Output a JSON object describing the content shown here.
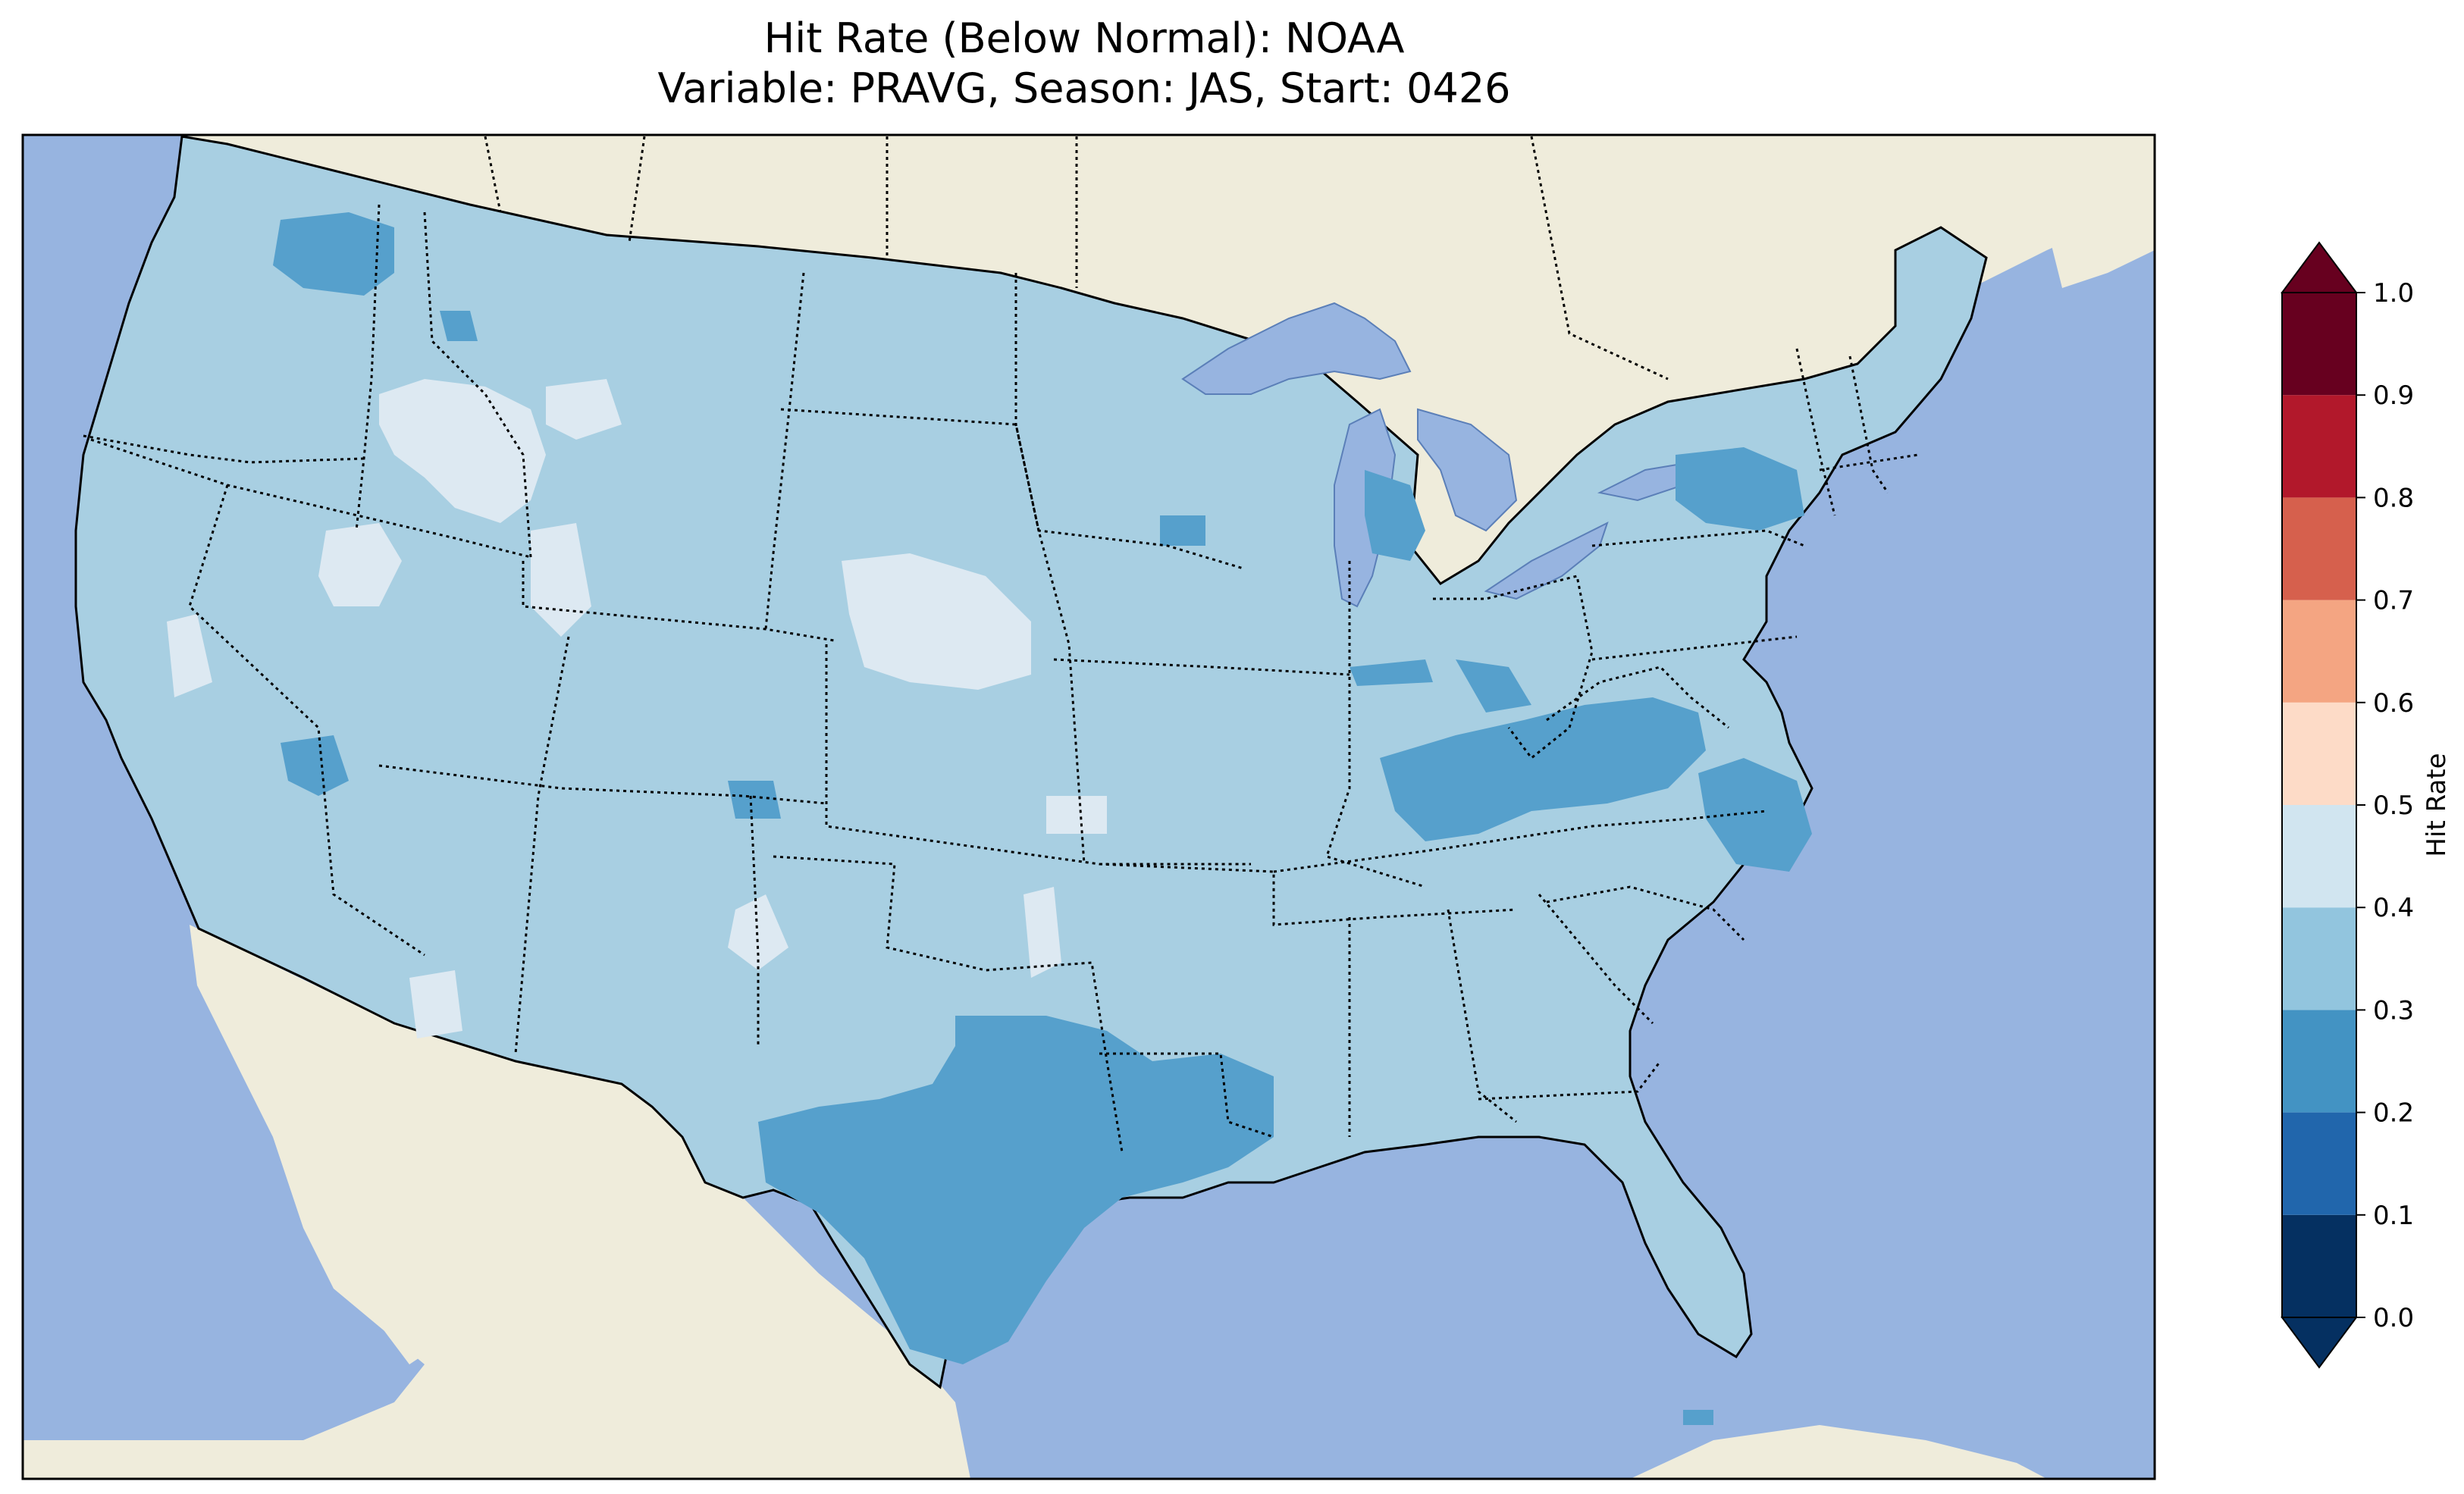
{
  "title": {
    "line1": "Hit Rate (Below Normal): NOAA",
    "line2": "Variable: PRAVG, Season: JAS, Start: 0426"
  },
  "colors": {
    "ocean": "#97b4e0",
    "land": "#efecdb",
    "lakes": "#97b4e0",
    "border": "#000000"
  },
  "colorbar": {
    "label": "Hit Rate",
    "ticks": [
      "0.0",
      "0.1",
      "0.2",
      "0.3",
      "0.4",
      "0.5",
      "0.6",
      "0.7",
      "0.8",
      "0.9",
      "1.0"
    ],
    "colors": [
      "#053061",
      "#2166ac",
      "#4393c3",
      "#92c5de",
      "#d1e5f0",
      "#fddbc7",
      "#f4a582",
      "#d6604d",
      "#b2182b",
      "#67001f"
    ],
    "extend_low_color": "#053061",
    "extend_high_color": "#67001f"
  },
  "chart_data": {
    "type": "heatmap",
    "title": "Hit Rate (Below Normal): NOAA\nVariable: PRAVG, Season: JAS, Start: 0426",
    "colorbar_label": "Hit Rate",
    "range": [
      0.0,
      1.0
    ],
    "dominant_value_range": [
      0.3,
      0.4
    ],
    "regions": [
      {
        "area": "Most of CONUS",
        "range": [
          0.3,
          0.4
        ]
      },
      {
        "area": "Idaho / Wyoming / Montana highlands",
        "range": [
          0.4,
          0.5
        ]
      },
      {
        "area": "Nebraska",
        "range": [
          0.4,
          0.5
        ]
      },
      {
        "area": "Northern Washington",
        "range": [
          0.2,
          0.3
        ]
      },
      {
        "area": "Texas / Louisiana",
        "range": [
          0.2,
          0.3
        ]
      },
      {
        "area": "Kentucky / West Virginia / Virginia",
        "range": [
          0.2,
          0.3
        ]
      },
      {
        "area": "North Carolina coast",
        "range": [
          0.2,
          0.3
        ]
      },
      {
        "area": "New York",
        "range": [
          0.2,
          0.3
        ]
      },
      {
        "area": "Michigan",
        "range": [
          0.2,
          0.3
        ]
      }
    ]
  }
}
